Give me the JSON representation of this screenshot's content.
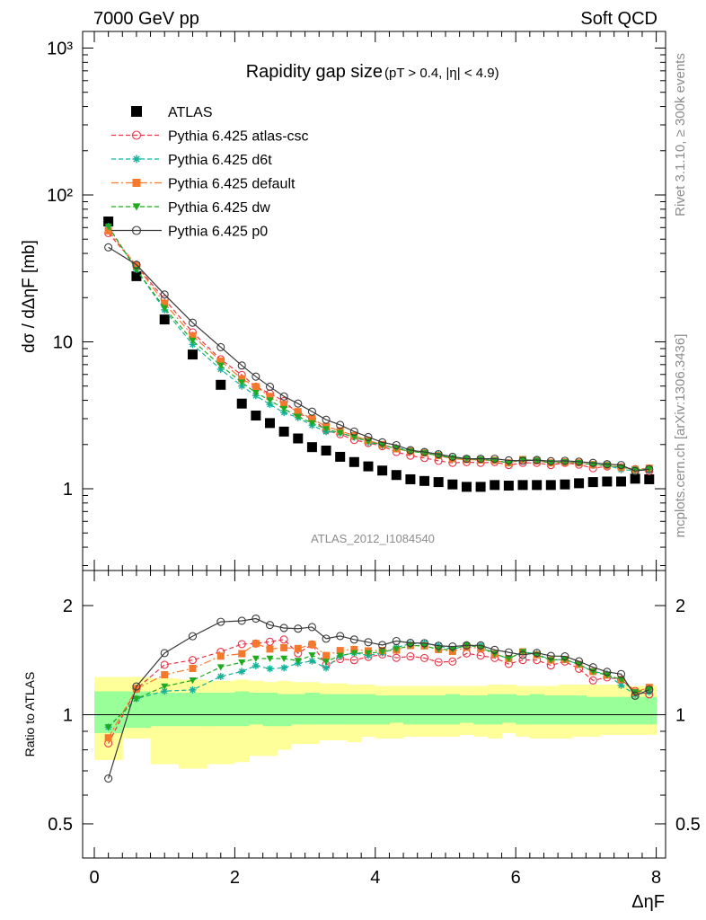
{
  "header": {
    "left": "7000 GeV pp",
    "right": "Soft QCD"
  },
  "side": {
    "rivet": "Rivet 3.1.10, ≥ 300k events",
    "mcplots": "mcplots.cern.ch [arXiv:1306.3436]"
  },
  "chart_data": [
    {
      "type": "scatter",
      "title": "Rapidity gap size",
      "subtitle": "(pT > 0.4, |η| < 4.9)",
      "ylabel": "dσ / dΔηF [mb]",
      "xlabel": "",
      "watermark": "ATLAS_2012_I1084540",
      "yscale": "log",
      "xlim": [
        -0.2,
        8.05
      ],
      "ylim": [
        0.3,
        1200
      ],
      "y_ticks": [
        "1",
        "10",
        "10²",
        "10³"
      ],
      "x": [
        0.2,
        0.6,
        1.0,
        1.4,
        1.8,
        2.1,
        2.3,
        2.5,
        2.7,
        2.9,
        3.1,
        3.3,
        3.5,
        3.7,
        3.9,
        4.1,
        4.3,
        4.5,
        4.7,
        4.9,
        5.1,
        5.3,
        5.5,
        5.7,
        5.9,
        6.1,
        6.3,
        6.5,
        6.7,
        6.9,
        7.1,
        7.3,
        7.5,
        7.7,
        7.9
      ],
      "series": [
        {
          "name": "ATLAS",
          "color": "#000000",
          "marker": "square",
          "values": [
            66,
            28,
            14.2,
            8.2,
            5.1,
            3.8,
            3.15,
            2.8,
            2.45,
            2.2,
            1.92,
            1.82,
            1.65,
            1.52,
            1.42,
            1.33,
            1.24,
            1.16,
            1.13,
            1.11,
            1.07,
            1.03,
            1.03,
            1.06,
            1.05,
            1.06,
            1.06,
            1.06,
            1.07,
            1.09,
            1.11,
            1.12,
            1.12,
            1.17,
            1.16
          ]
        },
        {
          "name": "Pythia 6.425 atlas-csc",
          "color": "#e8354a",
          "marker": "open-circle",
          "values": [
            55,
            33,
            19.5,
            11.6,
            7.6,
            5.95,
            4.95,
            4.45,
            3.95,
            3.25,
            3.0,
            2.5,
            2.35,
            2.15,
            2.05,
            1.95,
            1.78,
            1.68,
            1.62,
            1.55,
            1.5,
            1.52,
            1.5,
            1.52,
            1.45,
            1.5,
            1.5,
            1.45,
            1.5,
            1.46,
            1.38,
            1.42,
            1.4,
            1.36,
            1.32
          ]
        },
        {
          "name": "Pythia 6.425 d6t",
          "color": "#14b29a",
          "marker": "star",
          "values": [
            61,
            31,
            16.5,
            9.6,
            6.5,
            5.0,
            4.3,
            3.75,
            3.3,
            3.05,
            2.7,
            2.45,
            2.4,
            2.25,
            2.07,
            1.97,
            1.9,
            1.82,
            1.78,
            1.72,
            1.62,
            1.6,
            1.6,
            1.56,
            1.5,
            1.58,
            1.56,
            1.5,
            1.52,
            1.5,
            1.46,
            1.45,
            1.35,
            1.33,
            1.34
          ]
        },
        {
          "name": "Pythia 6.425 default",
          "color": "#f4792d",
          "marker": "square",
          "values": [
            57,
            33,
            18.3,
            11.0,
            7.4,
            5.6,
            4.95,
            4.25,
            3.75,
            3.35,
            3.0,
            2.65,
            2.48,
            2.3,
            2.13,
            2.0,
            1.87,
            1.8,
            1.75,
            1.68,
            1.6,
            1.58,
            1.57,
            1.56,
            1.5,
            1.58,
            1.55,
            1.5,
            1.52,
            1.5,
            1.46,
            1.44,
            1.4,
            1.35,
            1.38
          ]
        },
        {
          "name": "Pythia 6.425 dw",
          "color": "#1faa1f",
          "marker": "triangle-down",
          "values": [
            61,
            31,
            17.0,
            10.2,
            6.9,
            5.3,
            4.5,
            4.0,
            3.5,
            3.1,
            2.8,
            2.55,
            2.4,
            2.25,
            2.1,
            1.98,
            1.88,
            1.8,
            1.75,
            1.68,
            1.62,
            1.6,
            1.58,
            1.56,
            1.5,
            1.58,
            1.55,
            1.5,
            1.52,
            1.5,
            1.46,
            1.44,
            1.4,
            1.35,
            1.36
          ]
        },
        {
          "name": "Pythia 6.425 p0",
          "color": "#3a3a3a",
          "marker": "open-circle",
          "values": [
            44,
            33.5,
            21,
            13.5,
            9.2,
            6.9,
            5.8,
            4.95,
            4.25,
            3.8,
            3.35,
            2.95,
            2.72,
            2.45,
            2.25,
            2.07,
            1.98,
            1.83,
            1.78,
            1.72,
            1.65,
            1.6,
            1.6,
            1.6,
            1.56,
            1.55,
            1.57,
            1.54,
            1.55,
            1.53,
            1.5,
            1.47,
            1.45,
            1.32,
            1.36
          ]
        }
      ]
    },
    {
      "type": "scatter",
      "ylabel": "Ratio to ATLAS",
      "xlabel": "ΔηF",
      "yscale": "log",
      "xlim": [
        -0.2,
        8.05
      ],
      "ylim": [
        0.4,
        2.4
      ],
      "y_ticks": [
        "0.5",
        "1",
        "2"
      ],
      "x_ticks": [
        "0",
        "2",
        "4",
        "6",
        "8"
      ],
      "reference_line": 1,
      "band_edges": [
        0.0,
        0.4,
        0.8,
        1.2,
        1.6,
        2.0,
        2.2,
        2.4,
        2.6,
        2.8,
        3.0,
        3.2,
        3.4,
        3.6,
        3.8,
        4.0,
        4.2,
        4.4,
        4.6,
        4.8,
        5.0,
        5.2,
        5.4,
        5.6,
        5.8,
        6.0,
        6.2,
        6.4,
        6.6,
        6.8,
        7.0,
        7.2,
        7.4,
        7.6,
        7.8,
        8.0
      ],
      "band_inner": [
        [
          0.89,
          1.16
        ],
        [
          0.92,
          1.16
        ],
        [
          0.93,
          1.15
        ],
        [
          0.93,
          1.15
        ],
        [
          0.93,
          1.15
        ],
        [
          0.93,
          1.16
        ],
        [
          0.94,
          1.15
        ],
        [
          0.93,
          1.15
        ],
        [
          0.93,
          1.14
        ],
        [
          0.94,
          1.14
        ],
        [
          0.94,
          1.15
        ],
        [
          0.94,
          1.14
        ],
        [
          0.94,
          1.14
        ],
        [
          0.94,
          1.14
        ],
        [
          0.94,
          1.14
        ],
        [
          0.94,
          1.13
        ],
        [
          0.95,
          1.13
        ],
        [
          0.94,
          1.13
        ],
        [
          0.94,
          1.13
        ],
        [
          0.94,
          1.13
        ],
        [
          0.94,
          1.14
        ],
        [
          0.95,
          1.13
        ],
        [
          0.94,
          1.13
        ],
        [
          0.94,
          1.14
        ],
        [
          0.95,
          1.14
        ],
        [
          0.94,
          1.13
        ],
        [
          0.94,
          1.14
        ],
        [
          0.94,
          1.13
        ],
        [
          0.94,
          1.13
        ],
        [
          0.94,
          1.13
        ],
        [
          0.94,
          1.12
        ],
        [
          0.94,
          1.12
        ],
        [
          0.94,
          1.12
        ],
        [
          0.94,
          1.12
        ],
        [
          0.94,
          1.12
        ]
      ],
      "band_outer": [
        [
          0.75,
          1.27
        ],
        [
          0.86,
          1.27
        ],
        [
          0.73,
          1.26
        ],
        [
          0.71,
          1.25
        ],
        [
          0.73,
          1.24
        ],
        [
          0.74,
          1.25
        ],
        [
          0.77,
          1.24
        ],
        [
          0.77,
          1.23
        ],
        [
          0.8,
          1.24
        ],
        [
          0.83,
          1.23
        ],
        [
          0.83,
          1.23
        ],
        [
          0.85,
          1.22
        ],
        [
          0.85,
          1.22
        ],
        [
          0.84,
          1.21
        ],
        [
          0.87,
          1.21
        ],
        [
          0.86,
          1.2
        ],
        [
          0.86,
          1.2
        ],
        [
          0.87,
          1.2
        ],
        [
          0.87,
          1.2
        ],
        [
          0.87,
          1.2
        ],
        [
          0.87,
          1.2
        ],
        [
          0.88,
          1.2
        ],
        [
          0.87,
          1.2
        ],
        [
          0.86,
          1.21
        ],
        [
          0.89,
          1.21
        ],
        [
          0.87,
          1.2
        ],
        [
          0.86,
          1.2
        ],
        [
          0.86,
          1.2
        ],
        [
          0.86,
          1.21
        ],
        [
          0.87,
          1.21
        ],
        [
          0.87,
          1.21
        ],
        [
          0.88,
          1.21
        ],
        [
          0.88,
          1.21
        ],
        [
          0.88,
          1.2
        ],
        [
          0.88,
          1.2
        ]
      ]
    }
  ]
}
